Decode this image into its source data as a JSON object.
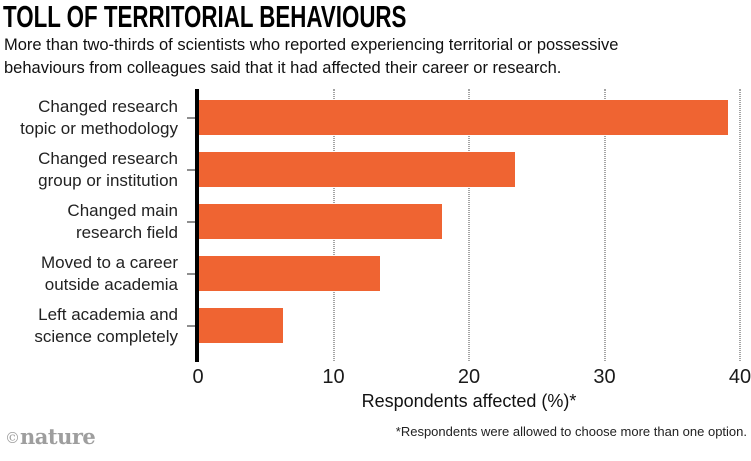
{
  "header": {
    "title": "TOLL OF TERRITORIAL BEHAVIOURS",
    "subtitle_lines": [
      "More than two-thirds of scientists who reported experiencing territorial or possessive",
      "behaviours from colleagues said that it had affected their career or research."
    ]
  },
  "chart_data": {
    "type": "bar",
    "orientation": "horizontal",
    "title": "TOLL OF TERRITORIAL BEHAVIOURS",
    "categories": [
      [
        "Changed research",
        "topic or methodology"
      ],
      [
        "Changed research",
        "group or institution"
      ],
      [
        "Changed main",
        "research field"
      ],
      [
        "Moved to a career",
        "outside academia"
      ],
      [
        "Left academia and",
        "science completely"
      ]
    ],
    "values": [
      39.1,
      23.4,
      18,
      13.4,
      6.3
    ],
    "xlabel": "Respondents affected (%)*",
    "xlim": [
      0,
      40
    ],
    "xticks": [
      0,
      10,
      20,
      30,
      40
    ],
    "grid": "dotted vertical at 10/20/30/40",
    "legend": "none",
    "bar_color": "#EF6432"
  },
  "footer": {
    "footnote": "*Respondents were allowed to choose more than one option.",
    "brand_copyright": "©",
    "brand_name": "nature"
  }
}
